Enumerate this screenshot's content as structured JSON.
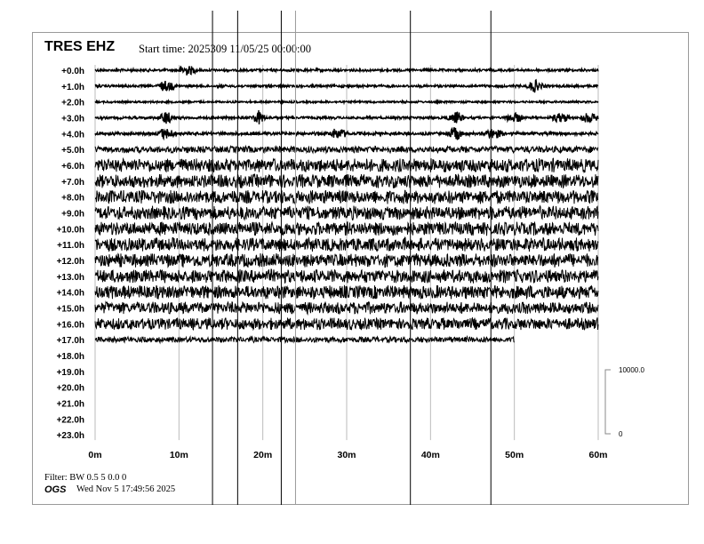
{
  "header": {
    "station": "TRES EHZ",
    "start_time": "Start time: 2025309 11/05/25 00:00:00"
  },
  "footer": {
    "filter": "Filter: BW 0.5 5 0.0 0",
    "org": "OGS",
    "timestamp": "Wed Nov  5 17:49:56 2025"
  },
  "chart_data": {
    "type": "line",
    "title": "TRES EHZ",
    "row_labels": [
      "+0.0h",
      "+1.0h",
      "+2.0h",
      "+3.0h",
      "+4.0h",
      "+5.0h",
      "+6.0h",
      "+7.0h",
      "+8.0h",
      "+9.0h",
      "+10.0h",
      "+11.0h",
      "+12.0h",
      "+13.0h",
      "+14.0h",
      "+15.0h",
      "+16.0h",
      "+17.0h",
      "+18.0h",
      "+19.0h",
      "+20.0h",
      "+21.0h",
      "+22.0h",
      "+23.0h"
    ],
    "x_ticks": [
      "0m",
      "10m",
      "20m",
      "30m",
      "40m",
      "50m",
      "60m"
    ],
    "xlim": [
      0,
      60
    ],
    "data_end": {
      "row": "+17.0h",
      "minute": 50
    },
    "scale_bar": {
      "top": "10000.0",
      "bottom": "0"
    },
    "grid": true,
    "marker_lines_minutes": [
      14,
      17,
      22.2,
      23.9,
      37.6,
      47.2
    ],
    "colors": {
      "trace": "#000000",
      "grid": "#bbbbbb",
      "frame": "#999999"
    }
  }
}
